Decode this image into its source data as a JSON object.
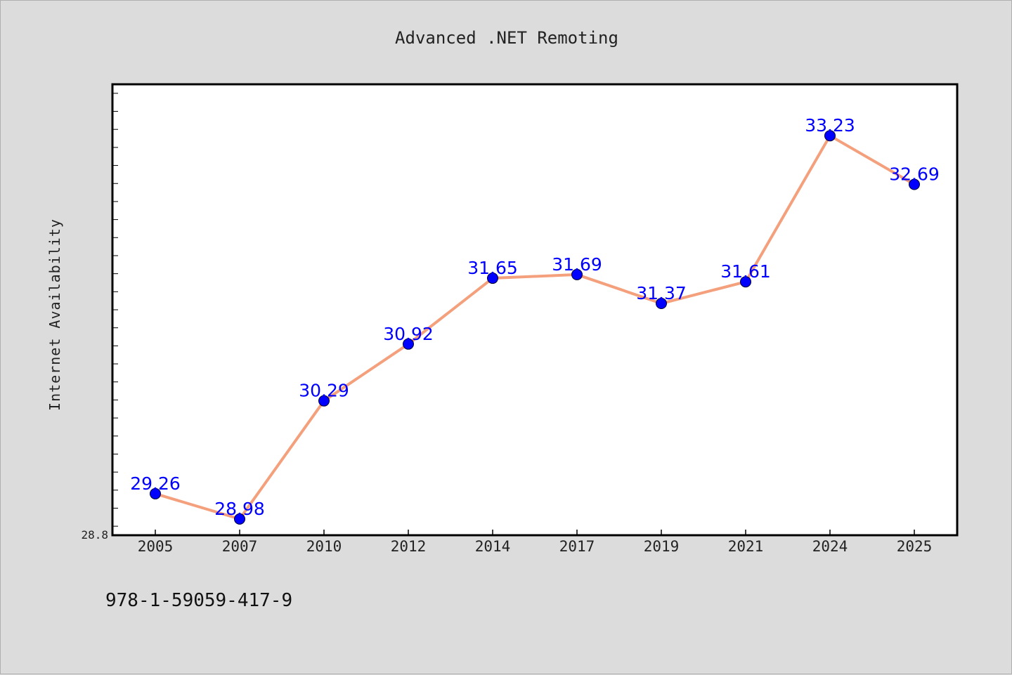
{
  "chart_data": {
    "type": "line",
    "title": "Advanced .NET Remoting",
    "xlabel": "",
    "ylabel": "Internet Availability",
    "categories": [
      "2005",
      "2007",
      "2010",
      "2012",
      "2014",
      "2017",
      "2019",
      "2021",
      "2024",
      "2025"
    ],
    "series": [
      {
        "values": [
          29.26,
          28.98,
          30.29,
          30.92,
          31.65,
          31.69,
          31.37,
          31.61,
          33.23,
          32.69
        ]
      }
    ],
    "data_labels": [
      "29.26",
      "28.98",
      "30.29",
      "30.92",
      "31.65",
      "31.69",
      "31.37",
      "31.61",
      "33.23",
      "32.69"
    ],
    "y_tick_labels": [
      "28.8"
    ],
    "ylim": [
      28.8,
      33.8
    ],
    "grid": false,
    "line_color": "#f4a07c",
    "marker_color": "#0000ff",
    "label_color": "#0000ff"
  },
  "footer": {
    "isbn": "978-1-59059-417-9"
  }
}
